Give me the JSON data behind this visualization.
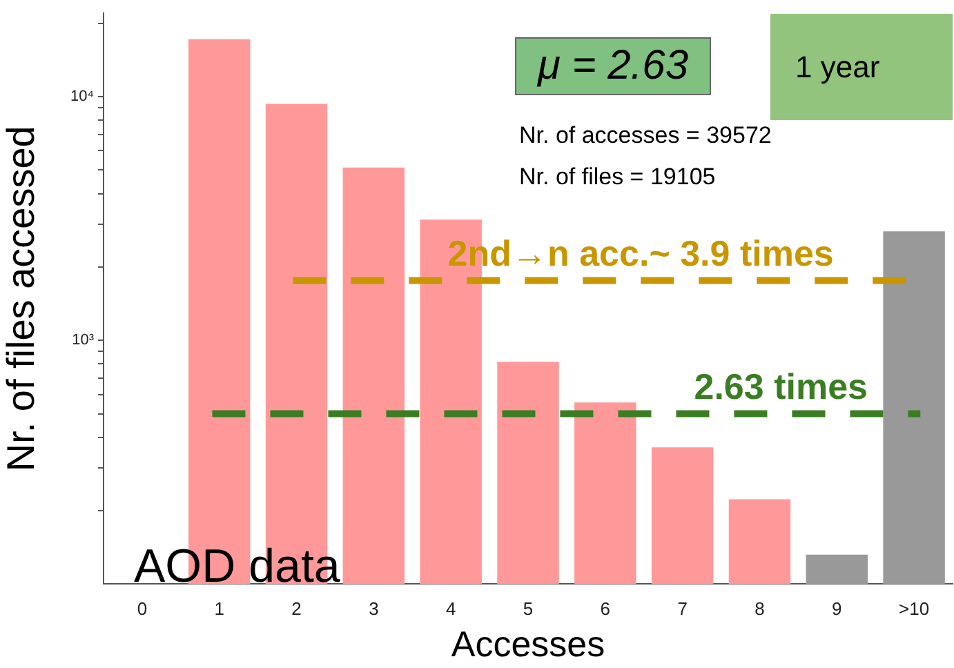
{
  "chart_data": {
    "type": "bar",
    "xlabel": "Accesses",
    "ylabel": "Nr. of files accessed",
    "categories": [
      "0",
      "1",
      "2",
      "3",
      "4",
      "5",
      "6",
      "7",
      "8",
      "9",
      ">10"
    ],
    "values": [
      null,
      17200,
      9350,
      5120,
      3130,
      817,
      556,
      364,
      223,
      132,
      2800
    ],
    "colors": [
      "#ff9999",
      "#ff9999",
      "#ff9999",
      "#ff9999",
      "#ff9999",
      "#ff9999",
      "#ff9999",
      "#ff9999",
      "#ff9999",
      "#999999",
      "#999999"
    ],
    "log": "y",
    "ylim": [
      100,
      22000
    ],
    "yticks": [
      {
        "value": 200,
        "label": null
      },
      {
        "value": 300,
        "label": null
      },
      {
        "value": 400,
        "label": null
      },
      {
        "value": 500,
        "label": null
      },
      {
        "value": 600,
        "label": null
      },
      {
        "value": 700,
        "label": null
      },
      {
        "value": 800,
        "label": null
      },
      {
        "value": 900,
        "label": null
      },
      {
        "value": 1000,
        "label": "10³"
      },
      {
        "value": 2000,
        "label": null
      },
      {
        "value": 3000,
        "label": null
      },
      {
        "value": 4000,
        "label": null
      },
      {
        "value": 5000,
        "label": null
      },
      {
        "value": 6000,
        "label": null
      },
      {
        "value": 7000,
        "label": null
      },
      {
        "value": 8000,
        "label": null
      },
      {
        "value": 9000,
        "label": null
      },
      {
        "value": 10000,
        "label": "10⁴"
      },
      {
        "value": 20000,
        "label": null
      }
    ],
    "grid": false,
    "legend": false,
    "ref_lines": [
      {
        "axis": "y",
        "value": 1760,
        "label": "2nd→n acc.~ 3.9 times",
        "color": "#c89600",
        "line_style": "dashed"
      },
      {
        "axis": "y",
        "value": 500,
        "label": "2.63 times",
        "color": "#3a7d22",
        "line_style": "dashed"
      }
    ],
    "annotations": [
      "μ = 2.63",
      "1 year",
      "Nr. of accesses = 39572",
      "Nr. of files = 19105",
      "AOD data"
    ]
  }
}
